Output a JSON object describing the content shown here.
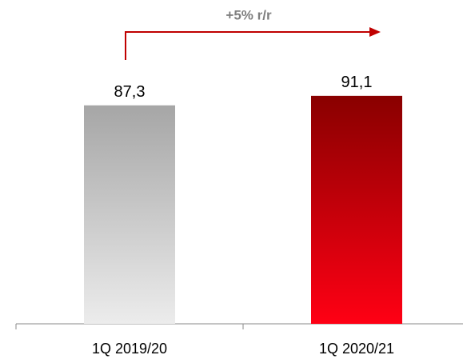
{
  "chart_data": {
    "type": "bar",
    "categories": [
      "1Q 2019/20",
      "1Q 2020/21"
    ],
    "values": [
      87.3,
      91.1
    ],
    "value_labels": [
      "87,3",
      "91,1"
    ],
    "colors": [
      [
        "#a6a6a6",
        "#ececec"
      ],
      [
        "#890000",
        "#ff0014"
      ]
    ],
    "ylim": [
      0,
      100
    ],
    "annotation": "+5% r/r"
  }
}
